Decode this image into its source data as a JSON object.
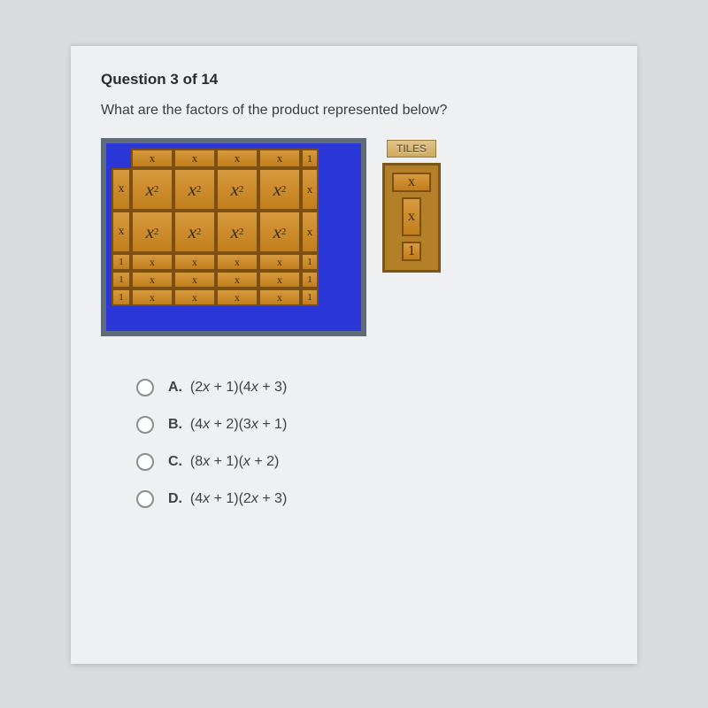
{
  "question": {
    "number_label": "Question 3 of 14",
    "prompt": "What are the factors of the product represented below?"
  },
  "palette": {
    "label": "TILES",
    "items": [
      "x",
      "x",
      "1"
    ]
  },
  "board": {
    "top_header": {
      "x_tiles": [
        "x",
        "x",
        "x",
        "x"
      ],
      "unit_tiles": [
        "1"
      ]
    },
    "left_header": {
      "x_tiles": [
        "x",
        "x"
      ],
      "unit_tiles": [
        "1",
        "1",
        "1"
      ]
    },
    "body_rows": [
      {
        "big": [
          "x²",
          "x²",
          "x²",
          "x²"
        ],
        "slim": [
          "x"
        ]
      },
      {
        "big": [
          "x²",
          "x²",
          "x²",
          "x²"
        ],
        "slim": [
          "x"
        ]
      }
    ],
    "low_rows": [
      {
        "x": [
          "x",
          "x",
          "x",
          "x"
        ],
        "one": [
          "1"
        ]
      },
      {
        "x": [
          "x",
          "x",
          "x",
          "x"
        ],
        "one": [
          "1"
        ]
      },
      {
        "x": [
          "x",
          "x",
          "x",
          "x"
        ],
        "one": [
          "1"
        ]
      }
    ]
  },
  "options": [
    {
      "letter": "A.",
      "expr": "(2x + 1)(4x + 3)"
    },
    {
      "letter": "B.",
      "expr": "(4x + 2)(3x + 1)"
    },
    {
      "letter": "C.",
      "expr": "(8x + 1)(x + 2)"
    },
    {
      "letter": "D.",
      "expr": "(4x + 1)(2x + 3)"
    }
  ],
  "colors": {
    "page_bg": "#d9dcde",
    "paper_bg": "#eef0f1",
    "board_bg": "#2b36d6",
    "board_frame": "#5f6b78",
    "tile_fill_a": "#d79a3f",
    "tile_fill_b": "#c17e1b",
    "tile_border": "#7b5012",
    "text": "#3a3c3f"
  }
}
